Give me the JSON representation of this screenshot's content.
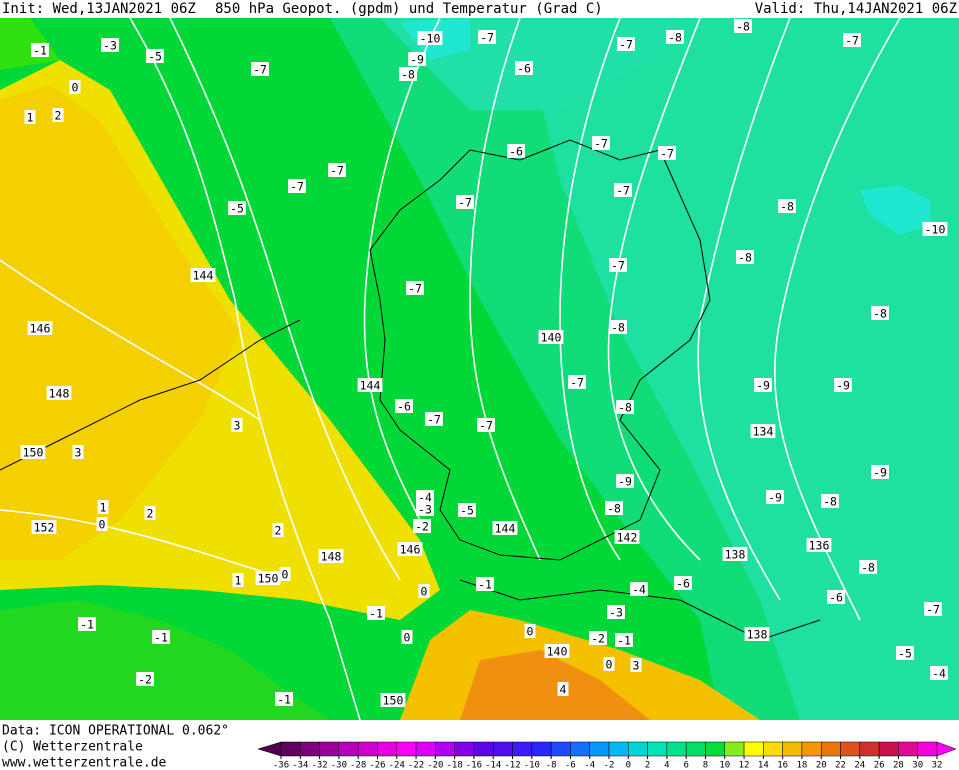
{
  "header": {
    "init": "Init: Wed,13JAN2021 06Z",
    "title": "850 hPa Geopot. (gpdm) und Temperatur (Grad C)",
    "valid": "Valid: Thu,14JAN2021 06Z"
  },
  "map": {
    "labels": [
      -1,
      -3,
      -5,
      0,
      1,
      2,
      -7,
      -10,
      -7,
      -9,
      -8,
      -6,
      -7,
      -8,
      -8,
      -7,
      -6,
      -7,
      -7,
      -7,
      -7,
      -5,
      -7,
      -7,
      -8,
      -10,
      -8,
      -7,
      144,
      -7,
      -8,
      -8,
      146,
      140,
      144,
      -7,
      -9,
      -9,
      148,
      -6,
      -7,
      -7,
      -8,
      134,
      3,
      150,
      3,
      -9,
      -9,
      -4,
      -3,
      -5,
      -9,
      -8,
      1,
      2,
      -8,
      152,
      0,
      -2,
      144,
      2,
      142,
      146,
      138,
      136,
      148,
      1,
      150,
      0,
      -8,
      -1,
      0,
      -4,
      -6,
      -6,
      -7,
      -1,
      -3,
      -1,
      -1,
      0,
      -2,
      -1,
      138,
      140,
      0,
      -5,
      -4,
      -2,
      0,
      -1,
      150,
      3,
      4
    ]
  },
  "footer": {
    "data": "Data: ICON OPERATIONAL 0.062°",
    "copyright": "(C) Wetterzentrale",
    "url": "www.wetterzentrale.de"
  },
  "colorbar": {
    "ticks": [
      -36,
      -34,
      -32,
      -30,
      -28,
      -26,
      -24,
      -22,
      -20,
      -18,
      -16,
      -14,
      -12,
      -10,
      -8,
      -6,
      -4,
      -2,
      0,
      2,
      4,
      6,
      8,
      10,
      12,
      14,
      16,
      18,
      20,
      22,
      24,
      26,
      28,
      30,
      32
    ]
  }
}
